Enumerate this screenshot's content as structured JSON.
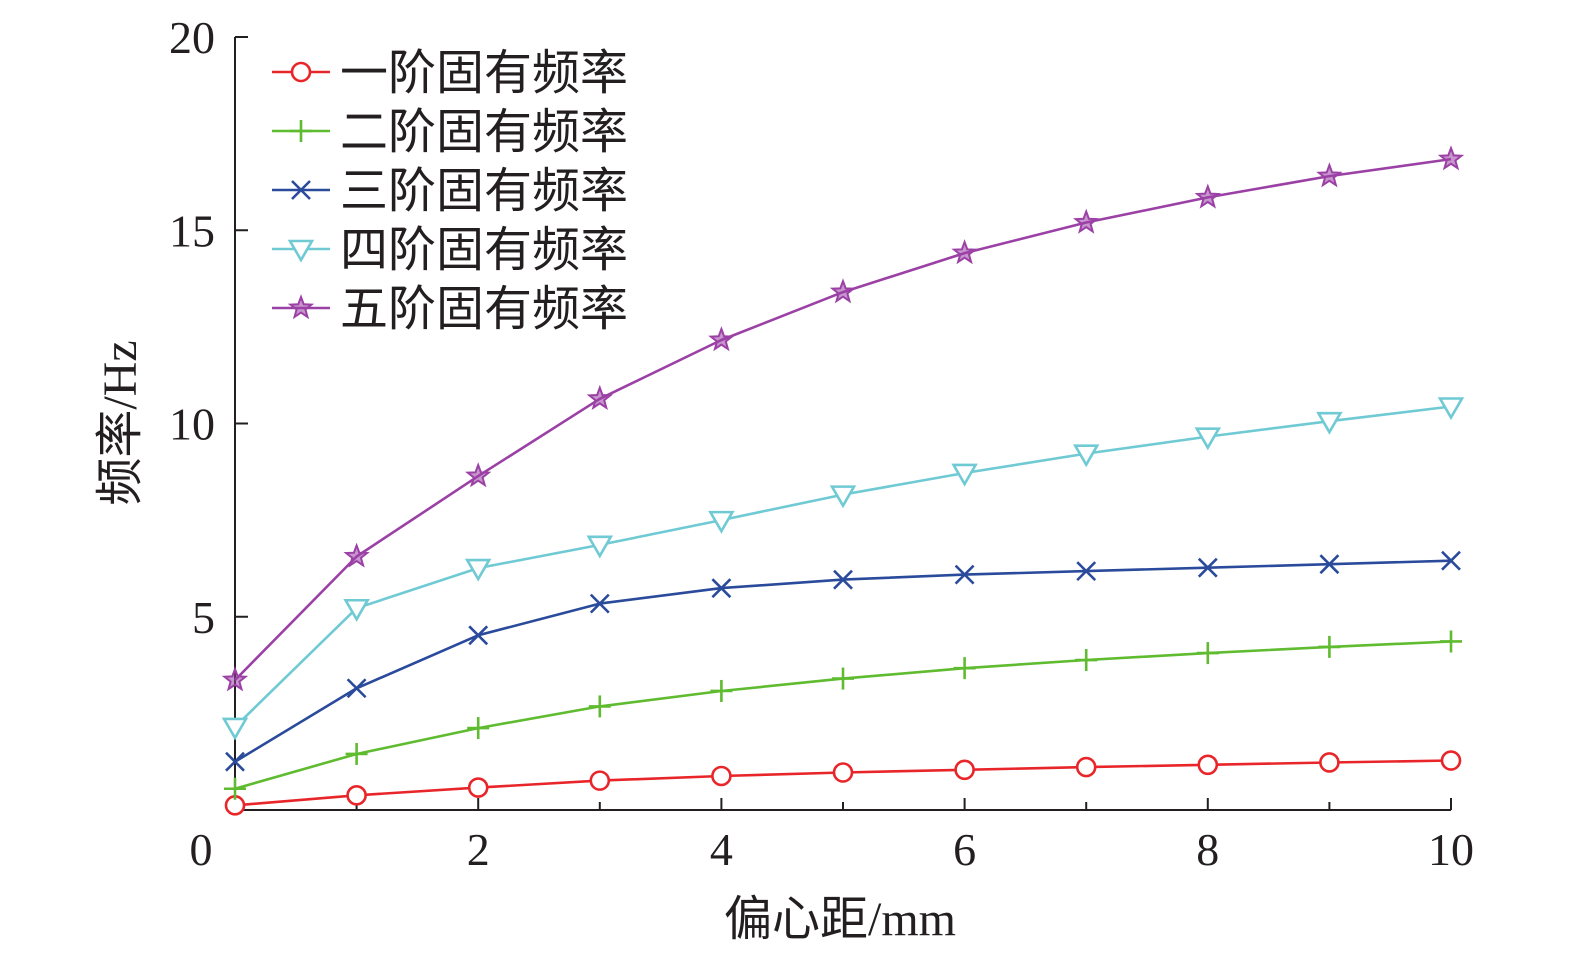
{
  "chart_data": {
    "type": "line",
    "title": "",
    "xlabel": "偏心距/mm",
    "ylabel": "频率/Hz",
    "xlim": [
      0,
      10
    ],
    "ylim": [
      0,
      20
    ],
    "xticks": [
      "0",
      "2",
      "4",
      "6",
      "8",
      "10"
    ],
    "yticks": [
      "5",
      "10",
      "15",
      "20"
    ],
    "grid": false,
    "legend_position": "top-left",
    "x": [
      0,
      1,
      2,
      3,
      4,
      5,
      6,
      7,
      8,
      9,
      10
    ],
    "series": [
      {
        "name": "一阶固有频率",
        "color": "#e8262a",
        "marker": "circle",
        "values": [
          0.12,
          0.38,
          0.58,
          0.76,
          0.88,
          0.97,
          1.04,
          1.11,
          1.17,
          1.23,
          1.28
        ]
      },
      {
        "name": "二阶固有频率",
        "color": "#5fbb2f",
        "marker": "plus",
        "values": [
          0.55,
          1.45,
          2.12,
          2.68,
          3.08,
          3.4,
          3.67,
          3.88,
          4.06,
          4.22,
          4.36
        ]
      },
      {
        "name": "三阶固有频率",
        "color": "#2a4a9b",
        "marker": "x",
        "values": [
          1.25,
          3.15,
          4.52,
          5.34,
          5.74,
          5.96,
          6.09,
          6.18,
          6.27,
          6.36,
          6.45
        ]
      },
      {
        "name": "四阶固有频率",
        "color": "#6fcad4",
        "marker": "triangle-down",
        "values": [
          2.15,
          5.22,
          6.26,
          6.86,
          7.5,
          8.16,
          8.72,
          9.22,
          9.66,
          10.06,
          10.44
        ]
      },
      {
        "name": "五阶固有频率",
        "color": "#9b40a5",
        "marker": "star",
        "values": [
          3.36,
          6.56,
          8.64,
          10.64,
          12.16,
          13.4,
          14.41,
          15.2,
          15.85,
          16.4,
          16.84
        ]
      }
    ]
  }
}
